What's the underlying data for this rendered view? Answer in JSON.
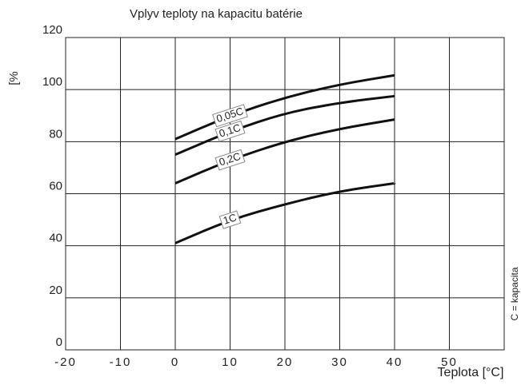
{
  "chart_data": {
    "type": "line",
    "title": "Vplyv teploty na kapacitu batérie",
    "x_label": "Teplota [°C]",
    "y_label": "[%",
    "annotation": "C = kapacita",
    "x": [
      0,
      10,
      20,
      30,
      40
    ],
    "series": [
      {
        "name": "0,05C",
        "color": "#111111",
        "values": [
          81,
          90,
          97,
          102,
          105.5
        ]
      },
      {
        "name": "0,1C",
        "color": "#111111",
        "values": [
          75,
          84,
          91,
          95,
          97.5
        ]
      },
      {
        "name": "0,2C",
        "color": "#111111",
        "values": [
          64,
          73,
          80,
          85,
          88.5
        ]
      },
      {
        "name": "1C",
        "color": "#111111",
        "values": [
          41,
          50,
          56,
          61,
          64
        ]
      }
    ],
    "xlim": [
      -20,
      60
    ],
    "xticks": [
      -20,
      -10,
      0,
      10,
      20,
      30,
      40,
      50
    ],
    "ylim": [
      0,
      120
    ],
    "yticks": [
      0,
      20,
      40,
      60,
      80,
      100,
      120
    ],
    "grid": true
  }
}
